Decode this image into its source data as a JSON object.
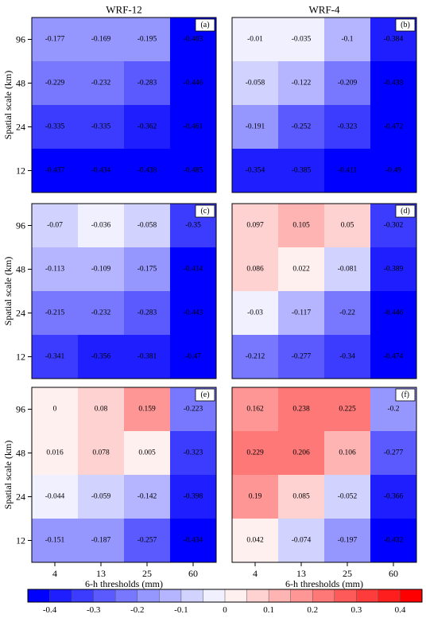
{
  "chart_data": {
    "type": "heatmap",
    "column_titles": [
      "WRF-12",
      "WRF-4"
    ],
    "ylabel": "Spatial scale (km)",
    "xlabel": "6-h thresholds (mm)",
    "x_ticks": [
      "4",
      "13",
      "25",
      "60"
    ],
    "y_ticks": [
      "96",
      "48",
      "24",
      "12"
    ],
    "colorbar": {
      "range": [
        -0.45,
        0.45
      ],
      "step": 0.05,
      "tick_labels": [
        "-0.4",
        "-0.3",
        "-0.2",
        "-0.1",
        "0",
        "0.1",
        "0.2",
        "0.3",
        "0.4"
      ],
      "tick_values": [
        -0.4,
        -0.3,
        -0.2,
        -0.1,
        0,
        0.1,
        0.2,
        0.3,
        0.4
      ],
      "neg_color": "#0000ff",
      "pos_color": "#ff0000",
      "mid_color": "#ffffff"
    },
    "panels": [
      {
        "label": "(a)",
        "values": [
          [
            "-0.177",
            "-0.169",
            "-0.195",
            "-0.403"
          ],
          [
            "-0.229",
            "-0.232",
            "-0.283",
            "-0.446"
          ],
          [
            "-0.335",
            "-0.335",
            "-0.362",
            "-0.461"
          ],
          [
            "-0.437",
            "-0.434",
            "-0.438",
            "-0.485"
          ]
        ]
      },
      {
        "label": "(b)",
        "values": [
          [
            "-0.01",
            "-0.035",
            "-0.1",
            "-0.384"
          ],
          [
            "-0.058",
            "-0.122",
            "-0.209",
            "-0.438"
          ],
          [
            "-0.191",
            "-0.252",
            "-0.323",
            "-0.472"
          ],
          [
            "-0.354",
            "-0.385",
            "-0.411",
            "-0.49"
          ]
        ]
      },
      {
        "label": "(c)",
        "values": [
          [
            "-0.07",
            "-0.036",
            "-0.058",
            "-0.35"
          ],
          [
            "-0.113",
            "-0.109",
            "-0.175",
            "-0.414"
          ],
          [
            "-0.215",
            "-0.232",
            "-0.283",
            "-0.443"
          ],
          [
            "-0.341",
            "-0.356",
            "-0.381",
            "-0.47"
          ]
        ]
      },
      {
        "label": "(d)",
        "values": [
          [
            "0.097",
            "0.105",
            "0.05",
            "-0.302"
          ],
          [
            "0.086",
            "0.022",
            "-0.081",
            "-0.389"
          ],
          [
            "-0.03",
            "-0.117",
            "-0.22",
            "-0.446"
          ],
          [
            "-0.212",
            "-0.277",
            "-0.34",
            "-0.474"
          ]
        ]
      },
      {
        "label": "(e)",
        "values": [
          [
            "0",
            "0.08",
            "0.159",
            "-0.223"
          ],
          [
            "0.016",
            "0.078",
            "0.005",
            "-0.323"
          ],
          [
            "-0.044",
            "-0.059",
            "-0.142",
            "-0.398"
          ],
          [
            "-0.151",
            "-0.187",
            "-0.257",
            "-0.434"
          ]
        ]
      },
      {
        "label": "(f)",
        "values": [
          [
            "0.162",
            "0.238",
            "0.225",
            "-0.2"
          ],
          [
            "0.229",
            "0.206",
            "0.106",
            "-0.277"
          ],
          [
            "0.19",
            "0.085",
            "-0.052",
            "-0.366"
          ],
          [
            "0.042",
            "-0.074",
            "-0.197",
            "-0.432"
          ]
        ]
      }
    ]
  }
}
